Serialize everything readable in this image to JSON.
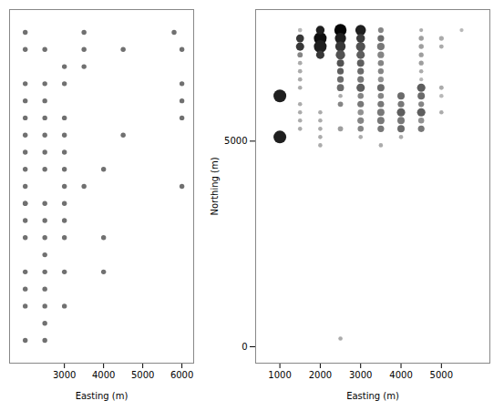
{
  "chart_data": [
    {
      "type": "scatter",
      "x": [
        2000,
        3500,
        5800,
        2000,
        2500,
        3500,
        4500,
        6000,
        3000,
        3500,
        2000,
        2500,
        3000,
        6000,
        2000,
        2500,
        6000,
        2000,
        2500,
        3000,
        6000,
        2000,
        2500,
        3000,
        4500,
        2000,
        2500,
        3000,
        2000,
        2500,
        3000,
        4000,
        2000,
        3000,
        3500,
        6000,
        2000,
        2500,
        2000,
        2500,
        3000,
        2000,
        2500,
        3000,
        4000,
        2500,
        2000,
        2500,
        3000,
        4000,
        2000,
        2500,
        2000,
        2500,
        3000,
        2500,
        2000,
        2500,
        2000,
        3000
      ],
      "y": [
        7600,
        7600,
        7600,
        7300,
        7300,
        7300,
        7300,
        7300,
        7000,
        7000,
        6700,
        6700,
        6700,
        6700,
        6400,
        6400,
        6400,
        6100,
        6100,
        6100,
        6100,
        5800,
        5800,
        5800,
        5800,
        5500,
        5500,
        5500,
        5200,
        5200,
        5200,
        5200,
        4900,
        4900,
        4900,
        4900,
        4600,
        4600,
        4300,
        4300,
        4300,
        4000,
        4000,
        4000,
        4000,
        3700,
        3400,
        3400,
        3400,
        3400,
        3100,
        3100,
        2800,
        2800,
        2800,
        2500,
        2200,
        2200,
        4600,
        4600
      ],
      "color": "#707070",
      "xlim": [
        1600,
        6300
      ],
      "ylim": [
        1800,
        8000
      ],
      "xticks": [
        3000,
        4000,
        5000,
        6000
      ],
      "yticks": [],
      "xlabel": "Easting (m)",
      "tick_labels": "x"
    },
    {
      "type": "scatter",
      "x": [
        1500,
        2000,
        2500,
        3000,
        3500,
        4500,
        5500,
        1500,
        2000,
        2500,
        3000,
        3500,
        4500,
        5000,
        1500,
        2000,
        2500,
        3000,
        3500,
        4500,
        5000,
        1500,
        2000,
        2500,
        3000,
        3500,
        4500,
        1500,
        2500,
        3000,
        3500,
        4500,
        1500,
        2500,
        3000,
        3500,
        4500,
        1500,
        2500,
        3000,
        3500,
        4500,
        1500,
        2500,
        3000,
        3500,
        4500,
        5000,
        1000,
        2500,
        3000,
        3500,
        4000,
        4500,
        5000,
        1500,
        2500,
        3000,
        3500,
        4000,
        4500,
        1500,
        2000,
        3000,
        3500,
        4000,
        4500,
        5000,
        1500,
        2000,
        3000,
        3500,
        4000,
        4500,
        1500,
        2000,
        2500,
        3000,
        3500,
        4000,
        4500,
        1000,
        2000,
        3000,
        4000,
        2000,
        3500,
        2500
      ],
      "y": [
        7700,
        7700,
        7700,
        7700,
        7700,
        7700,
        7700,
        7500,
        7500,
        7500,
        7500,
        7500,
        7500,
        7500,
        7300,
        7300,
        7300,
        7300,
        7300,
        7300,
        7300,
        7100,
        7100,
        7100,
        7100,
        7100,
        7100,
        6900,
        6900,
        6900,
        6900,
        6900,
        6700,
        6700,
        6700,
        6700,
        6700,
        6500,
        6500,
        6500,
        6500,
        6500,
        6300,
        6300,
        6300,
        6300,
        6300,
        6300,
        6100,
        6100,
        6100,
        6100,
        6100,
        6100,
        6100,
        5900,
        5900,
        5900,
        5900,
        5900,
        5900,
        5700,
        5700,
        5700,
        5700,
        5700,
        5700,
        5700,
        5500,
        5500,
        5500,
        5500,
        5500,
        5500,
        5300,
        5300,
        5300,
        5300,
        5300,
        5300,
        5300,
        5100,
        5100,
        5100,
        5100,
        4900,
        4900,
        200
      ],
      "sizes": [
        15,
        60,
        120,
        90,
        25,
        12,
        12,
        50,
        130,
        100,
        60,
        35,
        20,
        18,
        55,
        130,
        85,
        70,
        45,
        20,
        16,
        22,
        55,
        70,
        55,
        35,
        18,
        15,
        42,
        42,
        28,
        18,
        15,
        34,
        34,
        26,
        14,
        15,
        34,
        34,
        26,
        12,
        14,
        40,
        55,
        42,
        55,
        16,
        130,
        14,
        28,
        28,
        42,
        42,
        14,
        14,
        22,
        34,
        34,
        34,
        26,
        14,
        14,
        28,
        42,
        55,
        55,
        14,
        14,
        14,
        34,
        42,
        42,
        28,
        14,
        14,
        22,
        28,
        35,
        42,
        34,
        130,
        14,
        14,
        14,
        14,
        14,
        14
      ],
      "colors": [
        "rgb(72%,72%,72%)",
        "rgb(12%,12%,12%)",
        "rgb(2%,2%,2%)",
        "rgb(12%,12%,12%)",
        "rgb(52%,52%,52%)",
        "rgb(68%,68%,68%)",
        "rgb(72%,72%,72%)",
        "rgb(22%,22%,22%)",
        "rgb(6%,6%,6%)",
        "rgb(12%,12%,12%)",
        "rgb(24%,24%,24%)",
        "rgb(42%,42%,42%)",
        "rgb(62%,62%,62%)",
        "rgb(67%,67%,67%)",
        "rgb(22%,22%,22%)",
        "rgb(12%,12%,12%)",
        "rgb(22%,22%,22%)",
        "rgb(32%,32%,32%)",
        "rgb(47%,47%,47%)",
        "rgb(62%,62%,62%)",
        "rgb(67%,67%,67%)",
        "rgb(52%,52%,52%)",
        "rgb(22%,22%,22%)",
        "rgb(32%,32%,32%)",
        "rgb(37%,37%,37%)",
        "rgb(52%,52%,52%)",
        "rgb(62%,62%,62%)",
        "rgb(67%,67%,67%)",
        "rgb(32%,32%,32%)",
        "rgb(37%,37%,37%)",
        "rgb(52%,52%,52%)",
        "rgb(62%,62%,62%)",
        "rgb(67%,67%,67%)",
        "rgb(37%,37%,37%)",
        "rgb(42%,42%,42%)",
        "rgb(52%,52%,52%)",
        "rgb(67%,67%,67%)",
        "rgb(67%,67%,67%)",
        "rgb(42%,42%,42%)",
        "rgb(47%,47%,47%)",
        "rgb(57%,57%,57%)",
        "rgb(72%,72%,72%)",
        "rgb(67%,67%,67%)",
        "rgb(42%,42%,42%)",
        "rgb(37%,37%,37%)",
        "rgb(42%,42%,42%)",
        "rgb(37%,37%,37%)",
        "rgb(67%,67%,67%)",
        "rgb(12%,12%,12%)",
        "rgb(67%,67%,67%)",
        "rgb(52%,52%,52%)",
        "rgb(52%,52%,52%)",
        "rgb(42%,42%,42%)",
        "rgb(42%,42%,42%)",
        "rgb(72%,72%,72%)",
        "rgb(67%,67%,67%)",
        "rgb(52%,52%,52%)",
        "rgb(47%,47%,47%)",
        "rgb(47%,47%,47%)",
        "rgb(47%,47%,47%)",
        "rgb(52%,52%,52%)",
        "rgb(67%,67%,67%)",
        "rgb(67%,67%,67%)",
        "rgb(57%,57%,57%)",
        "rgb(47%,47%,47%)",
        "rgb(37%,37%,37%)",
        "rgb(37%,37%,37%)",
        "rgb(67%,67%,67%)",
        "rgb(67%,67%,67%)",
        "rgb(67%,67%,67%)",
        "rgb(52%,52%,52%)",
        "rgb(47%,47%,47%)",
        "rgb(47%,47%,47%)",
        "rgb(57%,57%,57%)",
        "rgb(67%,67%,67%)",
        "rgb(67%,67%,67%)",
        "rgb(62%,62%,62%)",
        "rgb(52%,52%,52%)",
        "rgb(47%,47%,47%)",
        "rgb(42%,42%,42%)",
        "rgb(47%,47%,47%)",
        "rgb(12%,12%,12%)",
        "rgb(67%,67%,67%)",
        "rgb(67%,67%,67%)",
        "rgb(67%,67%,67%)",
        "rgb(67%,67%,67%)",
        "rgb(67%,67%,67%)",
        "rgb(67%,67%,67%)"
      ],
      "xlim": [
        400,
        6200
      ],
      "ylim": [
        -400,
        8200
      ],
      "xticks": [
        1000,
        2000,
        3000,
        4000,
        5000
      ],
      "yticks": [
        0,
        5000
      ],
      "xlabel": "Easting (m)",
      "ylabel": "Northing (m)"
    }
  ]
}
